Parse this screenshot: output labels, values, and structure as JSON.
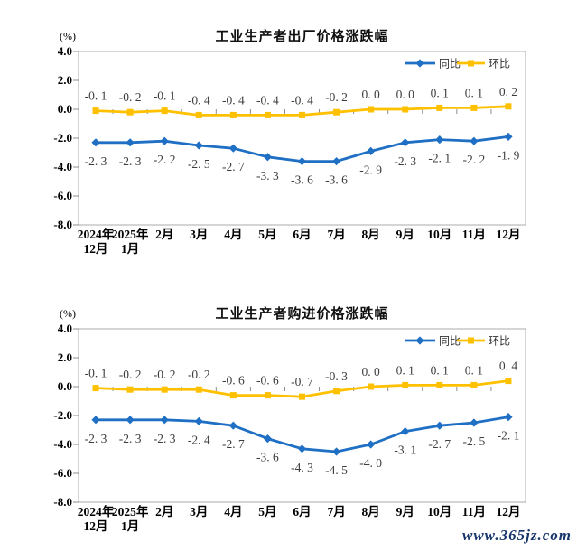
{
  "page": {
    "watermark_text": "www.365jz.com"
  },
  "colors": {
    "tongbi_blue": "#1f6fc4",
    "huanbi_yellow": "#ffc000",
    "axis_gray": "#ababab",
    "tick_gray": "#8c8c8c",
    "data_label_gray": "#3d3d3d",
    "watermark_navy": "#18356b"
  },
  "chart_data": [
    {
      "type": "line",
      "title": "工业生产者出厂价格涨跌幅",
      "unit_label": "(%)",
      "legend_position": "top-right",
      "grid": false,
      "y_axis": {
        "min": -8.0,
        "max": 4.0,
        "step": 2.0,
        "tick_labels": [
          "4.0",
          "2.0",
          "0.0",
          "-2.0",
          "-4.0",
          "-6.0",
          "-8.0"
        ]
      },
      "categories": [
        [
          "2024年",
          "12月"
        ],
        [
          "2025年",
          "1月"
        ],
        [
          "2月"
        ],
        [
          "3月"
        ],
        [
          "4月"
        ],
        [
          "5月"
        ],
        [
          "6月"
        ],
        [
          "7月"
        ],
        [
          "8月"
        ],
        [
          "9月"
        ],
        [
          "10月"
        ],
        [
          "11月"
        ],
        [
          "12月"
        ]
      ],
      "series": [
        {
          "name": "同比",
          "marker": "diamond",
          "color": "#1f6fc4",
          "label_position": "below",
          "values": [
            -2.3,
            -2.3,
            -2.2,
            -2.5,
            -2.7,
            -3.3,
            -3.6,
            -3.6,
            -2.9,
            -2.3,
            -2.1,
            -2.2,
            -1.9
          ],
          "labels": [
            "-2. 3",
            "-2. 3",
            "-2. 2",
            "-2. 5",
            "-2. 7",
            "-3. 3",
            "-3. 6",
            "-3. 6",
            "-2. 9",
            "-2. 3",
            "-2. 1",
            "-2. 2",
            "-1. 9"
          ]
        },
        {
          "name": "环比",
          "marker": "square",
          "color": "#ffc000",
          "label_position": "above",
          "values": [
            -0.1,
            -0.2,
            -0.1,
            -0.4,
            -0.4,
            -0.4,
            -0.4,
            -0.2,
            0.0,
            0.0,
            0.1,
            0.1,
            0.2
          ],
          "labels": [
            "-0. 1",
            "-0. 2",
            "-0. 1",
            "-0. 4",
            "-0. 4",
            "-0. 4",
            "-0. 4",
            "-0. 2",
            "0. 0",
            "0. 0",
            "0. 1",
            "0. 1",
            "0. 2"
          ]
        }
      ]
    },
    {
      "type": "line",
      "title": "工业生产者购进价格涨跌幅",
      "unit_label": "(%)",
      "legend_position": "top-right",
      "grid": false,
      "y_axis": {
        "min": -8.0,
        "max": 4.0,
        "step": 2.0,
        "tick_labels": [
          "4.0",
          "2.0",
          "0.0",
          "-2.0",
          "-4.0",
          "-6.0",
          "-8.0"
        ]
      },
      "categories": [
        [
          "2024年",
          "12月"
        ],
        [
          "2025年",
          "1月"
        ],
        [
          "2月"
        ],
        [
          "3月"
        ],
        [
          "4月"
        ],
        [
          "5月"
        ],
        [
          "6月"
        ],
        [
          "7月"
        ],
        [
          "8月"
        ],
        [
          "9月"
        ],
        [
          "10月"
        ],
        [
          "11月"
        ],
        [
          "12月"
        ]
      ],
      "series": [
        {
          "name": "同比",
          "marker": "diamond",
          "color": "#1f6fc4",
          "label_position": "below",
          "values": [
            -2.3,
            -2.3,
            -2.3,
            -2.4,
            -2.7,
            -3.6,
            -4.3,
            -4.5,
            -4.0,
            -3.1,
            -2.7,
            -2.5,
            -2.1
          ],
          "labels": [
            "-2. 3",
            "-2. 3",
            "-2. 3",
            "-2. 4",
            "-2. 7",
            "-3. 6",
            "-4. 3",
            "-4. 5",
            "-4. 0",
            "-3. 1",
            "-2. 7",
            "-2. 5",
            "-2. 1"
          ]
        },
        {
          "name": "环比",
          "marker": "square",
          "color": "#ffc000",
          "label_position": "above",
          "values": [
            -0.1,
            -0.2,
            -0.2,
            -0.2,
            -0.6,
            -0.6,
            -0.7,
            -0.3,
            0.0,
            0.1,
            0.1,
            0.1,
            0.4
          ],
          "labels": [
            "-0. 1",
            "-0. 2",
            "-0. 2",
            "-0. 2",
            "-0. 6",
            "-0. 6",
            "-0. 7",
            "-0. 3",
            "0. 0",
            "0. 1",
            "0. 1",
            "0. 1",
            "0. 4"
          ]
        }
      ]
    }
  ]
}
